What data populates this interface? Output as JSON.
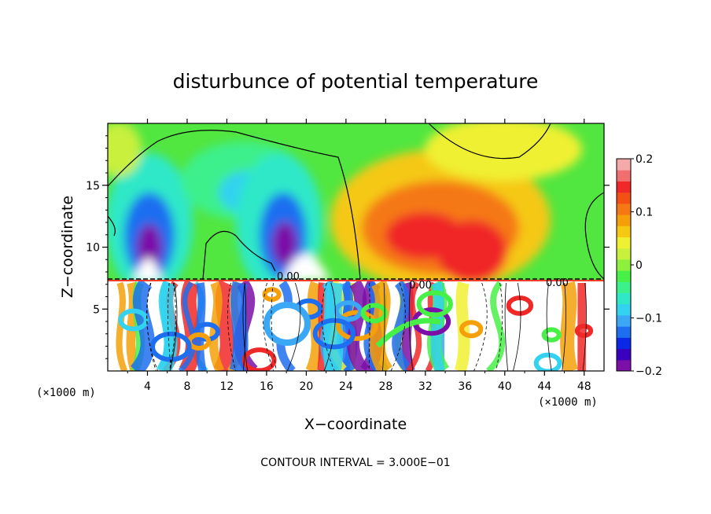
{
  "chart_data": {
    "type": "heatmap",
    "title": "disturbunce of potential temperature",
    "xlabel": "X−coordinate",
    "ylabel": "Z−coordinate",
    "x_unit_left": "(×1000 m)",
    "x_unit_right": "(×1000 m)",
    "x_ticks": [
      "4",
      "8",
      "12",
      "16",
      "20",
      "24",
      "28",
      "32",
      "36",
      "40",
      "44",
      "48"
    ],
    "x_tick_values": [
      4,
      8,
      12,
      16,
      20,
      24,
      28,
      32,
      36,
      40,
      44,
      48
    ],
    "y_ticks": [
      "5",
      "10",
      "15"
    ],
    "y_tick_values": [
      5,
      10,
      15
    ],
    "xlim": [
      0,
      50
    ],
    "ylim": [
      0,
      20
    ],
    "colorbar": {
      "ticks": [
        "0.2",
        "0.1",
        "0",
        "−0.1",
        "−0.2"
      ],
      "tick_values": [
        0.2,
        0.1,
        0,
        -0.1,
        -0.2
      ],
      "range": [
        -0.2,
        0.2
      ],
      "colors": [
        "#7b0fa8",
        "#3a00c0",
        "#0a28e6",
        "#1e6ef0",
        "#3aa8f5",
        "#32d2f0",
        "#2ee8c8",
        "#3cf08c",
        "#46f046",
        "#8cf03c",
        "#c8f03c",
        "#f0f032",
        "#f5c814",
        "#f5a00a",
        "#f57814",
        "#f55014",
        "#f02828",
        "#f07070",
        "#f5aaaa"
      ]
    },
    "contour_labels": [
      "0.00",
      "0.00",
      "0.00"
    ],
    "contour_interval_text": "CONTOUR INTERVAL = 3.000E−01",
    "inversion_height": 7.3,
    "features": [
      {
        "x": 4.5,
        "z": 10.5,
        "value": -0.2
      },
      {
        "x": 14.5,
        "z": 14.5,
        "value": -0.1
      },
      {
        "x": 19.5,
        "z": 10.5,
        "value": -0.2
      },
      {
        "x": 33.5,
        "z": 11.5,
        "value": 0.15
      },
      {
        "x": 36.0,
        "z": 10.0,
        "value": 0.15
      },
      {
        "x": 43.0,
        "z": 17.0,
        "value": 0.04
      },
      {
        "x": 2.0,
        "z": 17.5,
        "value": 0.02
      }
    ]
  }
}
